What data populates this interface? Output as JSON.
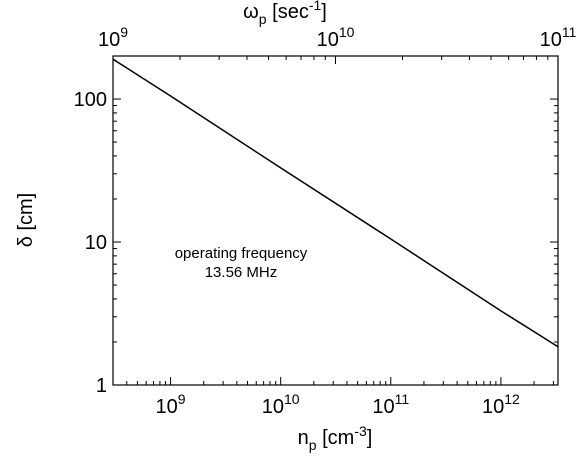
{
  "chart_data": {
    "type": "line",
    "xscale": "log",
    "yscale": "log",
    "xlim": [
      300000000.0,
      3300000000000.0
    ],
    "ylim": [
      1,
      200
    ],
    "top_xlim": [
      1000000000.0,
      100000000000.0
    ],
    "xlabel": {
      "base": "n",
      "sub": "p",
      "pre_unit": " [cm",
      "sup": "-3",
      "post_unit": "]"
    },
    "ylabel": "δ [cm]",
    "top_xlabel": {
      "base": "ω",
      "sub": "p",
      "pre_unit": " [sec",
      "sup": "-1",
      "post_unit": "]"
    },
    "x_ticks": [
      {
        "value": 1000000000.0,
        "base": "10",
        "exp": "9"
      },
      {
        "value": 10000000000.0,
        "base": "10",
        "exp": "10"
      },
      {
        "value": 100000000000.0,
        "base": "10",
        "exp": "11"
      },
      {
        "value": 1000000000000.0,
        "base": "10",
        "exp": "12"
      }
    ],
    "y_ticks": [
      {
        "value": 1,
        "label": "1"
      },
      {
        "value": 10,
        "label": "10"
      },
      {
        "value": 100,
        "label": "100"
      }
    ],
    "top_ticks": [
      {
        "value": 1000000000.0,
        "base": "10",
        "exp": "9"
      },
      {
        "value": 10000000000.0,
        "base": "10",
        "exp": "10"
      },
      {
        "value": 100000000000.0,
        "base": "10",
        "exp": "11"
      }
    ],
    "annotation": [
      "operating frequency",
      "13.56 MHz"
    ],
    "series": [
      {
        "x": [
          300000000.0,
          1000000000.0,
          10000000000.0,
          100000000000.0,
          1000000000000.0,
          3300000000000.0
        ],
        "y": [
          190,
          105,
          33,
          10.5,
          3.3,
          1.85
        ]
      }
    ],
    "grid": false,
    "line_color": "#000000"
  }
}
